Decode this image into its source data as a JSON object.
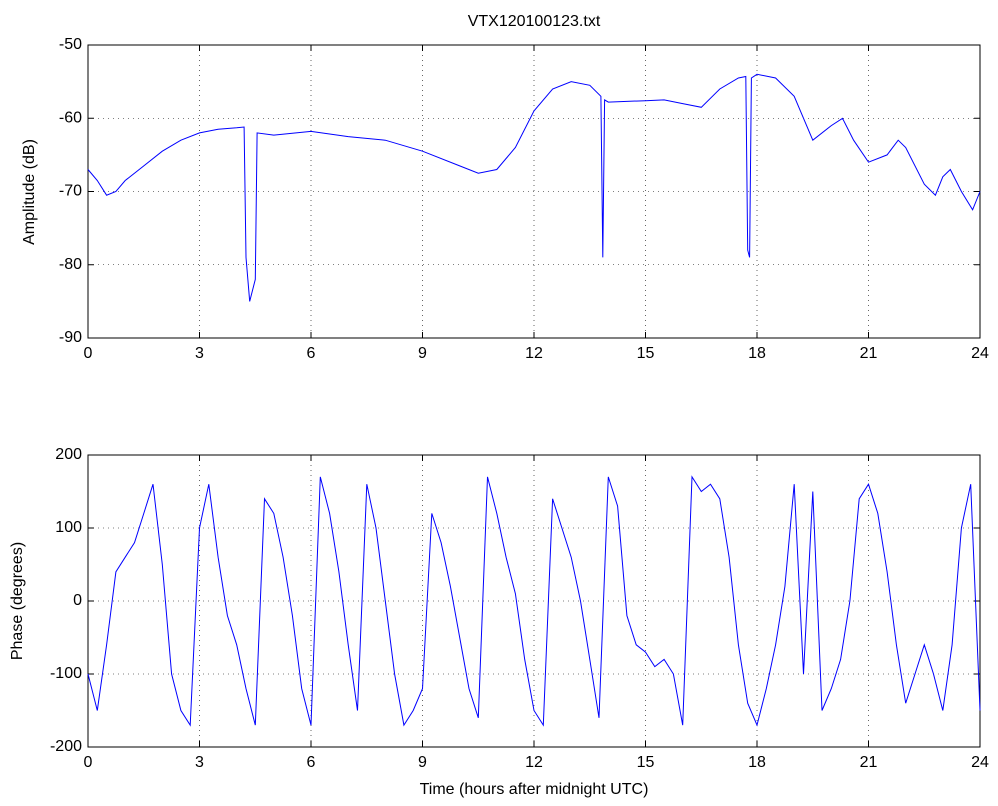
{
  "chart_data": [
    {
      "type": "line",
      "title": "VTX120100123.txt",
      "ylabel": "Amplitude (dB)",
      "color": "#0000ff",
      "grid": true,
      "xlim": [
        0,
        24
      ],
      "xticks": [
        0,
        3,
        6,
        9,
        12,
        15,
        18,
        21,
        24
      ],
      "ylim": [
        -90,
        -50
      ],
      "yticks": [
        -90,
        -80,
        -70,
        -60,
        -50
      ],
      "x": [
        0,
        0.25,
        0.5,
        0.75,
        1,
        1.5,
        2,
        2.5,
        3,
        3.5,
        4,
        4.2,
        4.25,
        4.35,
        4.5,
        4.55,
        5,
        6,
        7,
        8,
        9,
        10,
        10.5,
        11,
        11.5,
        12,
        12.5,
        13,
        13.5,
        13.8,
        13.85,
        13.9,
        14,
        15,
        15.5,
        16,
        16.5,
        17,
        17.5,
        17.7,
        17.75,
        17.8,
        17.85,
        18,
        18.5,
        19,
        19.5,
        20,
        20.3,
        20.6,
        21,
        21.5,
        21.8,
        22,
        22.5,
        22.8,
        23,
        23.2,
        23.5,
        23.8,
        24
      ],
      "values": [
        -67,
        -68.5,
        -70.5,
        -70,
        -68.5,
        -66.5,
        -64.5,
        -63,
        -62,
        -61.5,
        -61.3,
        -61.2,
        -79,
        -85,
        -82,
        -62,
        -62.3,
        -61.8,
        -62.5,
        -63,
        -64.5,
        -66.5,
        -67.5,
        -67,
        -64,
        -59,
        -56,
        -55,
        -55.5,
        -57,
        -79,
        -57.5,
        -57.8,
        -57.6,
        -57.5,
        -58,
        -58.5,
        -56,
        -54.5,
        -54.3,
        -78,
        -79,
        -54.5,
        -54,
        -54.5,
        -57,
        -63,
        -61,
        -60,
        -63,
        -66,
        -65,
        -63,
        -64,
        -69,
        -70.5,
        -68,
        -67,
        -70,
        -72.5,
        -70
      ]
    },
    {
      "type": "line",
      "xlabel": "Time (hours after midnight UTC)",
      "ylabel": "Phase (degrees)",
      "color": "#0000ff",
      "grid": true,
      "xlim": [
        0,
        24
      ],
      "xticks": [
        0,
        3,
        6,
        9,
        12,
        15,
        18,
        21,
        24
      ],
      "ylim": [
        -200,
        200
      ],
      "yticks": [
        -200,
        -100,
        0,
        100,
        200
      ],
      "x": [
        0,
        0.25,
        0.5,
        0.75,
        1,
        1.25,
        1.5,
        1.75,
        2,
        2.25,
        2.5,
        2.75,
        3,
        3.25,
        3.5,
        3.75,
        4,
        4.25,
        4.5,
        4.75,
        5,
        5.25,
        5.5,
        5.75,
        6,
        6.25,
        6.5,
        6.75,
        7,
        7.25,
        7.5,
        7.75,
        8,
        8.25,
        8.5,
        8.75,
        9,
        9.25,
        9.5,
        9.75,
        10,
        10.25,
        10.5,
        10.75,
        11,
        11.25,
        11.5,
        11.75,
        12,
        12.25,
        12.5,
        12.75,
        13,
        13.25,
        13.5,
        13.75,
        14,
        14.25,
        14.5,
        14.75,
        15,
        15.25,
        15.5,
        15.75,
        16,
        16.25,
        16.5,
        16.75,
        17,
        17.25,
        17.5,
        17.75,
        18,
        18.25,
        18.5,
        18.75,
        19,
        19.25,
        19.5,
        19.75,
        20,
        20.25,
        20.5,
        20.75,
        21,
        21.25,
        21.5,
        21.75,
        22,
        22.25,
        22.5,
        22.75,
        23,
        23.25,
        23.5,
        23.75,
        24
      ],
      "values": [
        -100,
        -150,
        -60,
        40,
        60,
        80,
        120,
        160,
        50,
        -100,
        -150,
        -170,
        100,
        160,
        60,
        -20,
        -60,
        -120,
        -170,
        140,
        120,
        60,
        -20,
        -120,
        -170,
        170,
        120,
        40,
        -60,
        -150,
        160,
        100,
        0,
        -100,
        -170,
        -150,
        -120,
        120,
        80,
        20,
        -50,
        -120,
        -160,
        170,
        120,
        60,
        10,
        -80,
        -150,
        -170,
        140,
        100,
        60,
        0,
        -80,
        -160,
        170,
        130,
        -20,
        -60,
        -70,
        -90,
        -80,
        -100,
        -170,
        170,
        150,
        160,
        140,
        60,
        -60,
        -140,
        -170,
        -120,
        -60,
        20,
        160,
        -100,
        150,
        -150,
        -120,
        -80,
        0,
        140,
        160,
        120,
        40,
        -60,
        -140,
        -100,
        -60,
        -100,
        -150,
        -60,
        100,
        160,
        -150
      ]
    }
  ]
}
